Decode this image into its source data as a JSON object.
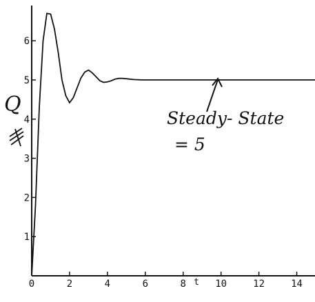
{
  "chart_data": {
    "type": "line",
    "xlabel": "t",
    "ylabel": "Q",
    "xlim": [
      0,
      15
    ],
    "ylim": [
      0,
      6.9
    ],
    "x_ticks": [
      0,
      2,
      4,
      6,
      8,
      10,
      12,
      14
    ],
    "y_ticks": [
      1,
      2,
      3,
      4,
      5,
      6
    ],
    "grid": false,
    "series": [
      {
        "x": [
          0,
          0.2,
          0.4,
          0.6,
          0.8,
          1.0,
          1.2,
          1.4,
          1.6,
          1.8,
          2.0,
          2.2,
          2.4,
          2.6,
          2.8,
          3.0,
          3.2,
          3.4,
          3.6,
          3.8,
          4.0,
          4.2,
          4.4,
          4.6,
          4.8,
          5.0,
          5.4,
          5.8,
          6.2,
          7,
          8,
          10,
          12,
          14,
          15
        ],
        "y": [
          0,
          1.8,
          4.3,
          6.0,
          6.7,
          6.68,
          6.3,
          5.7,
          5.0,
          4.6,
          4.42,
          4.55,
          4.8,
          5.05,
          5.2,
          5.25,
          5.18,
          5.08,
          4.98,
          4.94,
          4.95,
          4.98,
          5.02,
          5.04,
          5.04,
          5.03,
          5.01,
          5.0,
          5.0,
          5.0,
          5.0,
          5.0,
          5.0,
          5.0,
          5.0
        ]
      }
    ],
    "annotations": [
      {
        "text": "Steady- State",
        "x": 10,
        "y": 5
      },
      {
        "text": "= 5"
      }
    ]
  }
}
